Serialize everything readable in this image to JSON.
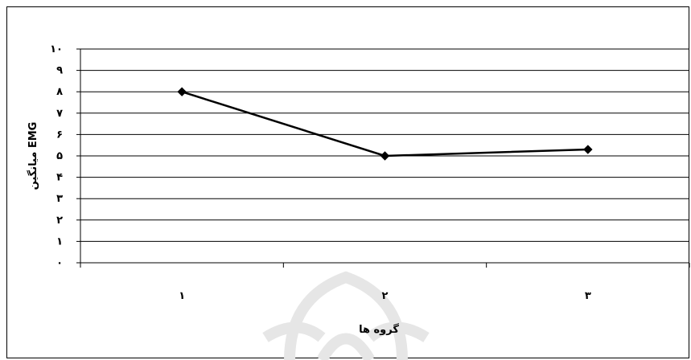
{
  "chart_data": {
    "type": "line",
    "categories": [
      "۱",
      "۲",
      "۳"
    ],
    "series": [
      {
        "values": [
          8,
          5,
          5.3
        ],
        "color": "#000000",
        "marker": "diamond"
      }
    ],
    "xlabel": "گروه ها",
    "ylabel": "میانگین EMG",
    "yticks": [
      "۰",
      "۱",
      "۲",
      "۳",
      "۴",
      "۵",
      "۶",
      "۷",
      "۸",
      "۹",
      "۱۰"
    ],
    "ylim": [
      0,
      10
    ],
    "grid": true,
    "background": "#ffffff",
    "watermark": "arch-shaped logo (faint gray)"
  }
}
